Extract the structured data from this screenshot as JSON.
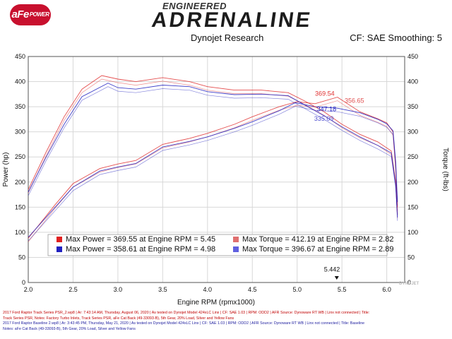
{
  "header": {
    "logo_text": "aFe",
    "logo_sub": "POWER",
    "brand_top": "ENGINEERED",
    "brand_main": "ADRENALINE",
    "source": "Dynojet Research",
    "settings": "CF: SAE Smoothing: 5"
  },
  "chart_data": {
    "type": "line",
    "title": "",
    "xlabel": "Engine RPM (rpmx1000)",
    "ylabel": "Power (hp)",
    "y2label": "Torque (ft-lbs)",
    "xlim": [
      2.0,
      6.2
    ],
    "ylim": [
      0,
      450
    ],
    "x_ticks": [
      "2.0",
      "2.5",
      "3.0",
      "3.5",
      "4.0",
      "4.5",
      "5.0",
      "5.5",
      "6.0"
    ],
    "y_ticks": [
      "0",
      "50",
      "100",
      "150",
      "200",
      "250",
      "300",
      "350",
      "400",
      "450"
    ],
    "grid": true,
    "series": [
      {
        "name": "Max Power",
        "run": "red",
        "kind": "power",
        "color": "#e03030",
        "x": [
          2.0,
          2.3,
          2.5,
          2.8,
          3.0,
          3.2,
          3.5,
          3.8,
          4.0,
          4.3,
          4.5,
          4.8,
          5.0,
          5.2,
          5.45,
          5.7,
          5.9,
          6.0,
          6.07,
          6.1,
          6.12
        ],
        "y": [
          88,
          155,
          197,
          227,
          236,
          243,
          275,
          287,
          297,
          315,
          330,
          350,
          360,
          356,
          369,
          340,
          326,
          318,
          300,
          230,
          150
        ]
      },
      {
        "name": "Max Power",
        "run": "blue",
        "kind": "power",
        "color": "#2020c0",
        "x": [
          2.0,
          2.3,
          2.5,
          2.8,
          3.0,
          3.2,
          3.5,
          3.8,
          4.0,
          4.3,
          4.5,
          4.8,
          4.98,
          5.2,
          5.45,
          5.7,
          5.9,
          6.0,
          6.07,
          6.1,
          6.12
        ],
        "y": [
          90,
          150,
          190,
          222,
          230,
          237,
          270,
          281,
          290,
          307,
          320,
          342,
          358,
          350,
          347,
          338,
          325,
          316,
          302,
          240,
          160
        ]
      },
      {
        "name": "Max Torque",
        "run": "red",
        "kind": "torque",
        "color": "#e03030",
        "x": [
          2.0,
          2.2,
          2.4,
          2.6,
          2.82,
          3.0,
          3.2,
          3.5,
          3.8,
          4.0,
          4.3,
          4.6,
          4.9,
          5.1,
          5.3,
          5.5,
          5.7,
          5.9,
          6.05,
          6.1,
          6.12
        ],
        "y": [
          185,
          260,
          330,
          385,
          412,
          405,
          400,
          408,
          400,
          390,
          383,
          383,
          378,
          360,
          340,
          315,
          295,
          280,
          262,
          200,
          135
        ]
      },
      {
        "name": "Max Torque",
        "run": "blue",
        "kind": "torque",
        "color": "#2020c0",
        "x": [
          2.0,
          2.2,
          2.4,
          2.6,
          2.89,
          3.0,
          3.2,
          3.5,
          3.8,
          4.0,
          4.3,
          4.6,
          4.9,
          5.1,
          5.3,
          5.5,
          5.7,
          5.9,
          6.05,
          6.1,
          6.12
        ],
        "y": [
          180,
          250,
          315,
          370,
          397,
          388,
          385,
          393,
          390,
          380,
          374,
          375,
          372,
          352,
          332,
          310,
          290,
          273,
          258,
          195,
          130
        ]
      }
    ],
    "point_labels": [
      {
        "text": "369.54",
        "x": 5.2,
        "y": 372,
        "color": "#e03030"
      },
      {
        "text": "356.65",
        "x": 5.53,
        "y": 358,
        "color": "#e05050"
      },
      {
        "text": "347.18",
        "x": 5.22,
        "y": 341,
        "color": "#2020c0"
      },
      {
        "text": "335.09",
        "x": 5.19,
        "y": 322,
        "color": "#5050d0"
      },
      {
        "text": "5.442",
        "x": 5.3,
        "y": 22,
        "color": "#111111"
      }
    ],
    "legend": {
      "placement": "bottom-center",
      "entries": [
        {
          "text": "Max Power = 369.55 at Engine RPM = 5.45",
          "color": "#e02020"
        },
        {
          "text": "Max Torque = 412.19 at Engine RPM = 2.82",
          "color": "#e07070"
        },
        {
          "text": "Max Power = 358.61 at Engine RPM = 4.98",
          "color": "#2020c0"
        },
        {
          "text": "Max Torque = 396.67 at Engine RPM = 2.89",
          "color": "#6060e0"
        }
      ]
    },
    "watermark": "DYNOJET"
  },
  "footer": {
    "line1": "2017 Ford Raptor Track Series PSR_2.wp8 | Ar: 7:43:14 AM, Thursday, August 06, 2020 | As tested on Dynojet Model 424xLC Linx | CF: SAE 1.03 | RPM: ODD2 | AFR Source: Dynoware RT WB | Linx not connected | Title:",
    "line2": "Track Series PSR, Notes: Factory Turbo Inlets, Track Series PSR, aFe Cat Back (49-33093-B), 5th Gear, 20% Load, Silver and Yellow Fans",
    "line3": "2017 Ford Raptor Baseline 2.wp8 | Ar: 3:43:45 PM, Thursday, May 21, 2020 | As tested on Dynojet Model 424xLC Linx | CF: SAE 1.03 | RPM: ODD2 | AFR Source: Dynoware RT WB | Linx not connected | Title: Baseline",
    "line4": "Notes: aFe Cat Back (49-33093-B), 5th Gear, 20% Load, Silver and Yellow Fans"
  }
}
